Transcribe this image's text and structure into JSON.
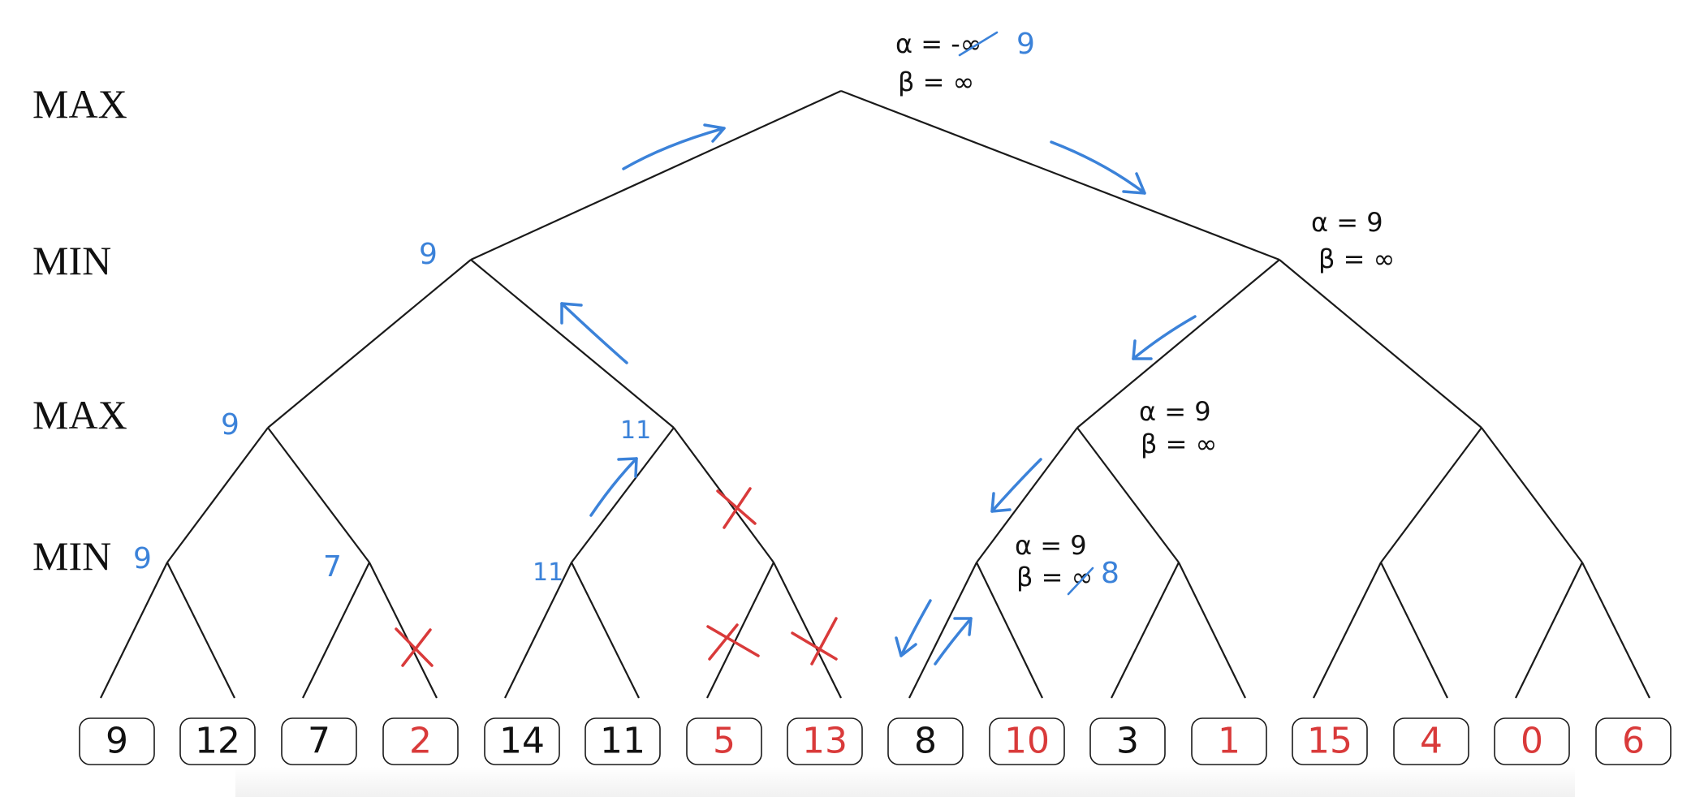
{
  "level_labels": [
    "MAX",
    "MIN",
    "MAX",
    "MIN"
  ],
  "leaves": [
    {
      "value": "9",
      "color": "#111111"
    },
    {
      "value": "12",
      "color": "#111111"
    },
    {
      "value": "7",
      "color": "#111111"
    },
    {
      "value": "2",
      "color": "#d93a3a"
    },
    {
      "value": "14",
      "color": "#111111"
    },
    {
      "value": "11",
      "color": "#111111"
    },
    {
      "value": "5",
      "color": "#d93a3a"
    },
    {
      "value": "13",
      "color": "#d93a3a"
    },
    {
      "value": "8",
      "color": "#111111"
    },
    {
      "value": "10",
      "color": "#d93a3a"
    },
    {
      "value": "3",
      "color": "#111111"
    },
    {
      "value": "1",
      "color": "#d93a3a"
    },
    {
      "value": "15",
      "color": "#d93a3a"
    },
    {
      "value": "4",
      "color": "#d93a3a"
    },
    {
      "value": "0",
      "color": "#d93a3a"
    },
    {
      "value": "6",
      "color": "#d93a3a"
    }
  ],
  "node_values": {
    "root_min_left": "9",
    "max_left": "9",
    "max_left_right": "11",
    "min_1": "9",
    "min_2": "7",
    "min_3": "11"
  },
  "annotations": {
    "root_alpha": "α = -∞",
    "root_alpha_new": "9",
    "root_beta": "β = ∞",
    "right_min_alpha": "α = 9",
    "right_min_beta": "β = ∞",
    "right_max_alpha": "α = 9",
    "right_max_beta": "β = ∞",
    "deep_min_alpha": "α = 9",
    "deep_min_beta": "β = ∞",
    "deep_min_beta_new": "8"
  },
  "colors": {
    "line": "#1a1a1a",
    "annotation_blue": "#3b82d9",
    "pruned_red": "#d93a3a"
  }
}
